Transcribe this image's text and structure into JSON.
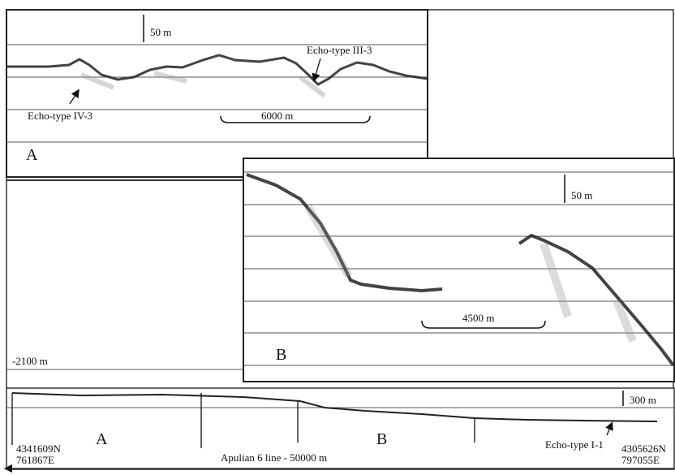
{
  "panel_a": {
    "scale": "50 m",
    "echo_upper": "Echo-type III-3",
    "echo_lower": "Echo-type IV-3",
    "length": "6000 m",
    "label": "A"
  },
  "panel_b": {
    "scale": "50 m",
    "length": "4500 m",
    "label": "B"
  },
  "depth": "-2100 m",
  "overview": {
    "scale": "300 m",
    "label_a": "A",
    "label_b": "B",
    "start_north": "4341609N",
    "start_east": "761867E",
    "line_name": "Apulian 6 line - 50000 m",
    "echo": "Echo-type I-1",
    "end_north": "4305626N",
    "end_east": "797055E"
  }
}
